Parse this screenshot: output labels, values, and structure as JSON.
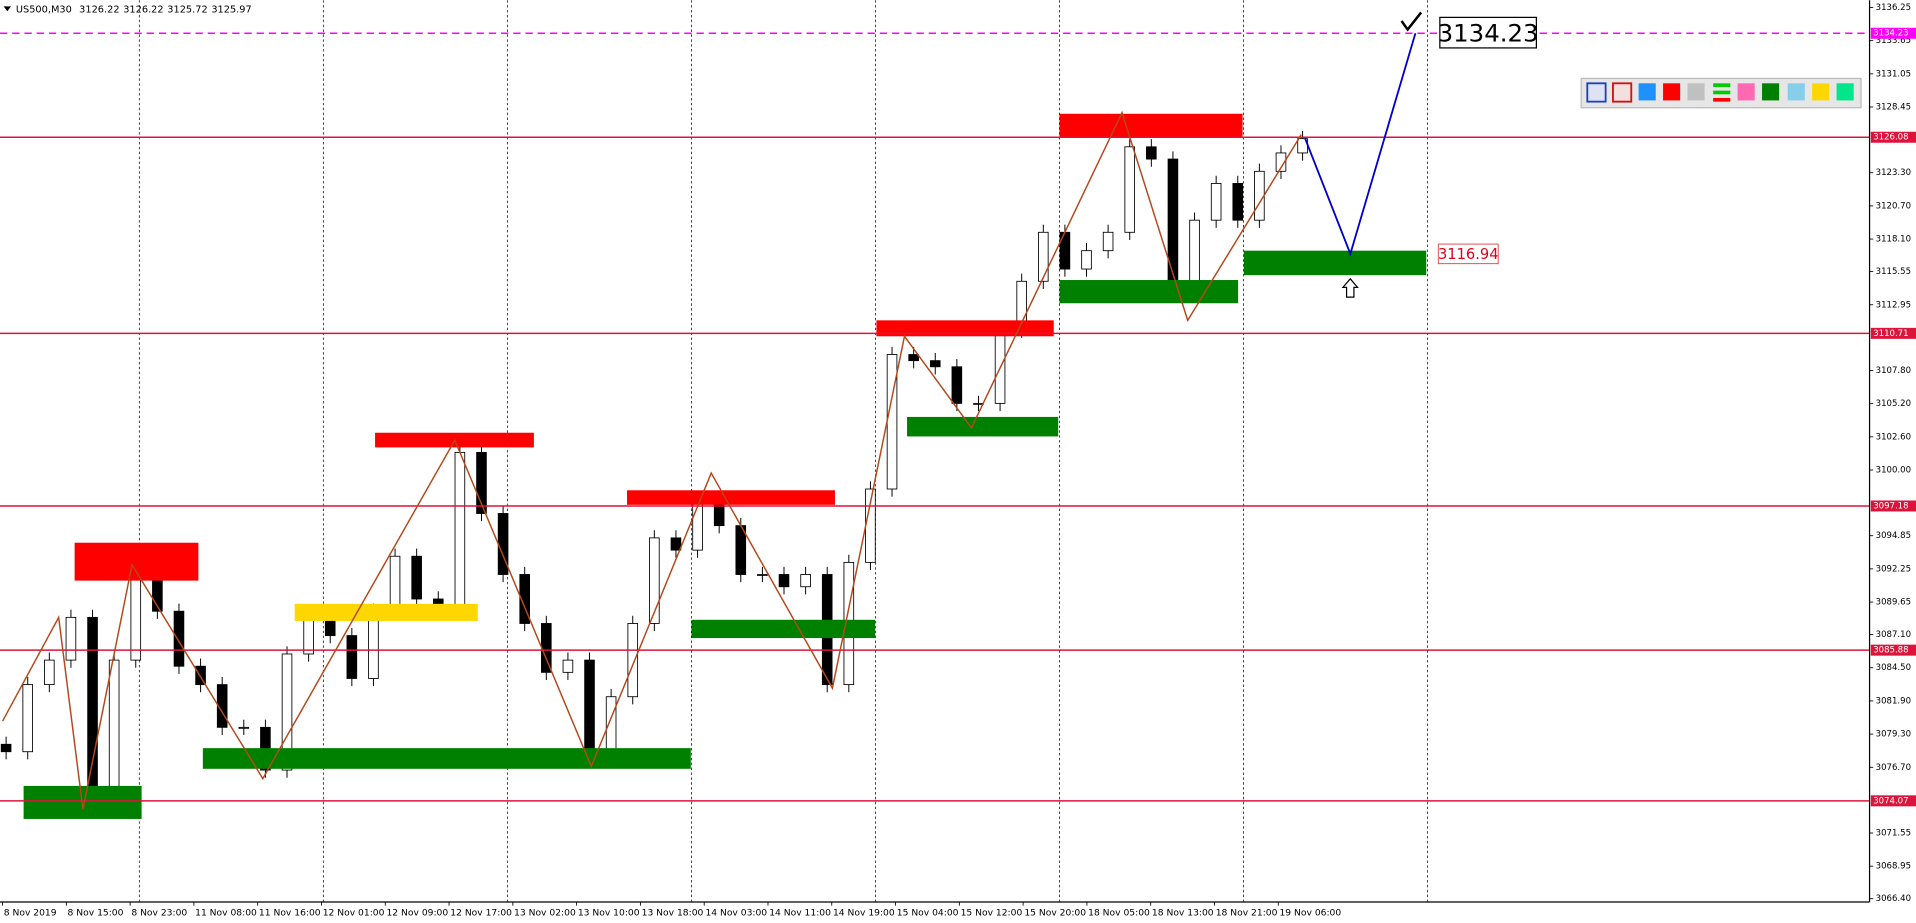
{
  "chart_data": {
    "type": "candlestick",
    "title": "US500,M30",
    "header_values": [
      3126.22,
      3126.22,
      3125.72,
      3125.97
    ],
    "ylim": [
      3066.14,
      3136.82
    ],
    "xlim": [
      -0.04,
      29.27
    ],
    "yticks": [
      3136.25,
      3133.65,
      3131.05,
      3128.45,
      {
        "value": 3123.3,
        "label": "3123.30"
      },
      {
        "value": 3120.7,
        "label": "3120.70"
      },
      {
        "value": 3118.1,
        "label": "3118.10"
      },
      3115.55,
      3112.95,
      {
        "value": 3107.8,
        "label": "3107.80"
      },
      {
        "value": 3105.2,
        "label": "3105.20"
      },
      {
        "value": 3102.6,
        "label": "3102.60"
      },
      {
        "value": 3100,
        "label": "3100.00"
      },
      3094.85,
      3092.25,
      3089.65,
      {
        "value": 3087.1,
        "label": "3087.10"
      },
      {
        "value": 3084.5,
        "label": "3084.50"
      },
      {
        "value": 3081.9,
        "label": "3081.90"
      },
      {
        "value": 3079.3,
        "label": "3079.30"
      },
      {
        "value": 3076.7,
        "label": "3076.70"
      },
      3071.55,
      3068.95,
      {
        "value": 3066.4,
        "label": "3066.40"
      }
    ],
    "x_labels": [
      "8 Nov 2019",
      "8 Nov 15:00",
      "8 Nov 23:00",
      "11 Nov 08:00",
      "11 Nov 16:00",
      "12 Nov 01:00",
      "12 Nov 09:00",
      "12 Nov 17:00",
      "13 Nov 02:00",
      "13 Nov 10:00",
      "13 Nov 18:00",
      "14 Nov 03:00",
      "14 Nov 11:00",
      "14 Nov 19:00",
      "15 Nov 04:00",
      "15 Nov 12:00",
      "15 Nov 20:00",
      "18 Nov 05:00",
      "18 Nov 13:00",
      "18 Nov 21:00",
      "19 Nov 06:00"
    ],
    "candles": {
      "open": [
        3078.5,
        3077.92,
        3083.18,
        3085.1,
        3088.45,
        3073.61,
        3085.1,
        3092.28,
        3088.93,
        3084.62,
        3083.18,
        3079.83,
        3079.83,
        3076.48,
        3085.58,
        3088.45,
        3087.02,
        3083.66,
        3088.93,
        3093.24,
        3089.89,
        3088.93,
        3101.38,
        3096.59,
        3091.81,
        3087.97,
        3084.14,
        3085.1,
        3077.44,
        3082.23,
        3087.97,
        3094.68,
        3093.72,
        3097.55,
        3095.64,
        3091.81,
        3091.81,
        3090.85,
        3091.81,
        3083.18,
        3092.76,
        3098.51,
        3109.05,
        3108.57,
        3108.09,
        3105.22,
        3105.22,
        3110.96,
        3114.79,
        3118.63,
        3115.75,
        3117.19,
        3118.63,
        3125.33,
        3124.37,
        3114.79,
        3119.58,
        3122.46,
        3119.58,
        3123.41,
        3124.85
      ],
      "high": [
        3079.1,
        3083.78,
        3085.7,
        3089.05,
        3089.05,
        3085.7,
        3092.88,
        3092.88,
        3089.53,
        3085.22,
        3083.78,
        3080.43,
        3080.43,
        3086.18,
        3089.05,
        3089.05,
        3087.62,
        3089.53,
        3093.84,
        3093.84,
        3090.49,
        3101.98,
        3101.98,
        3097.19,
        3092.41,
        3088.57,
        3085.7,
        3085.7,
        3082.83,
        3088.57,
        3095.28,
        3095.28,
        3098.15,
        3098.15,
        3096.24,
        3092.41,
        3092.41,
        3092.41,
        3092.41,
        3093.36,
        3099.11,
        3109.65,
        3109.65,
        3109.17,
        3108.69,
        3105.82,
        3111.56,
        3115.39,
        3119.23,
        3119.23,
        3117.79,
        3119.23,
        3125.93,
        3125.93,
        3124.97,
        3120.18,
        3123.06,
        3123.06,
        3124.01,
        3125.45,
        3126.57
      ],
      "low": [
        3077.32,
        3077.32,
        3082.58,
        3084.5,
        3073.01,
        3073.01,
        3084.5,
        3088.33,
        3084.02,
        3082.58,
        3079.23,
        3079.23,
        3075.88,
        3075.88,
        3084.98,
        3086.42,
        3083.06,
        3083.06,
        3088.33,
        3089.29,
        3088.33,
        3088.33,
        3095.99,
        3091.21,
        3087.37,
        3083.54,
        3083.54,
        3076.84,
        3076.84,
        3081.63,
        3087.37,
        3093.12,
        3093.12,
        3095.04,
        3091.21,
        3091.21,
        3090.25,
        3090.25,
        3082.58,
        3082.58,
        3092.16,
        3097.91,
        3107.97,
        3107.49,
        3104.62,
        3104.62,
        3104.62,
        3110.36,
        3114.19,
        3115.15,
        3115.15,
        3116.59,
        3118.03,
        3123.77,
        3114.19,
        3114.19,
        3118.98,
        3118.98,
        3118.98,
        3122.81,
        3124.25
      ],
      "close": [
        3077.92,
        3083.18,
        3085.1,
        3088.45,
        3073.61,
        3085.1,
        3092.28,
        3088.93,
        3084.62,
        3083.18,
        3079.83,
        3079.83,
        3076.48,
        3085.58,
        3088.45,
        3087.02,
        3083.66,
        3088.93,
        3093.24,
        3089.89,
        3088.93,
        3101.38,
        3096.59,
        3091.81,
        3087.97,
        3084.14,
        3085.1,
        3077.44,
        3082.23,
        3087.97,
        3094.68,
        3093.72,
        3097.55,
        3095.64,
        3091.81,
        3091.81,
        3090.85,
        3091.81,
        3083.18,
        3092.76,
        3098.51,
        3109.05,
        3108.57,
        3108.09,
        3105.22,
        3105.22,
        3110.96,
        3114.79,
        3118.63,
        3115.75,
        3117.19,
        3118.63,
        3125.33,
        3124.37,
        3114.79,
        3119.58,
        3122.46,
        3119.58,
        3123.41,
        3124.85,
        3125.97
      ]
    },
    "levels": [
      {
        "value": 3134.23,
        "color": "#ff00ff",
        "dashed": true
      },
      {
        "value": 3126.08,
        "color": "#dc143c",
        "dashed": false
      },
      {
        "value": 3110.71,
        "color": "#dc143c",
        "dashed": false
      },
      {
        "value": 3097.18,
        "color": "#dc143c",
        "dashed": false
      },
      {
        "value": 3085.88,
        "color": "#dc143c",
        "dashed": false
      },
      {
        "value": 3074.07,
        "color": "#dc143c",
        "dashed": false
      }
    ],
    "zones": [
      {
        "x": [
          1.13,
          3.07
        ],
        "y": [
          3094.3,
          3091.33
        ],
        "color": "#ff0000"
      },
      {
        "x": [
          5.84,
          8.33
        ],
        "y": [
          3102.92,
          3101.77
        ],
        "color": "#ff0000"
      },
      {
        "x": [
          9.79,
          13.05
        ],
        "y": [
          3098.41,
          3097.27
        ],
        "color": "#ff0000"
      },
      {
        "x": [
          13.7,
          16.48
        ],
        "y": [
          3111.73,
          3110.48
        ],
        "color": "#ff0000"
      },
      {
        "x": [
          16.57,
          19.44
        ],
        "y": [
          3127.92,
          3126.1
        ],
        "color": "#ff0000"
      },
      {
        "x": [
          4.58,
          7.45
        ],
        "y": [
          3089.51,
          3088.17
        ],
        "color": "#ffd700"
      },
      {
        "x": [
          0.33,
          2.18
        ],
        "y": [
          3075.24,
          3072.65
        ],
        "color": "#008000"
      },
      {
        "x": [
          3.14,
          10.79
        ],
        "y": [
          3078.2,
          3076.58
        ],
        "color": "#008000"
      },
      {
        "x": [
          10.8,
          13.68
        ],
        "y": [
          3088.26,
          3086.83
        ],
        "color": "#008000"
      },
      {
        "x": [
          14.18,
          16.55
        ],
        "y": [
          3104.16,
          3102.63
        ],
        "color": "#008000"
      },
      {
        "x": [
          16.57,
          19.37
        ],
        "y": [
          3114.89,
          3113.07
        ],
        "color": "#008000"
      },
      {
        "x": [
          19.46,
          22.32
        ],
        "y": [
          3117.19,
          3115.27
        ],
        "color": "#008000"
      }
    ],
    "zigzag": {
      "color": "#b5471b",
      "x": [
        0,
        0.88,
        1.26,
        2.03,
        4.08,
        7.09,
        9.23,
        11.11,
        13.01,
        14.14,
        15.19,
        17.55,
        18.58,
        20.36
      ],
      "y": [
        3080.31,
        3088.45,
        3073.41,
        3092.57,
        3075.81,
        3102.34,
        3076.77,
        3099.76,
        3082.9,
        3110.48,
        3103.3,
        3128.01,
        3111.73,
        3126.29
      ]
    },
    "projection": {
      "color": "#0000cc",
      "x": [
        20.42,
        21.13,
        22.15
      ],
      "y": [
        3126.0,
        3116.94,
        3134.23
      ]
    }
  }
}
